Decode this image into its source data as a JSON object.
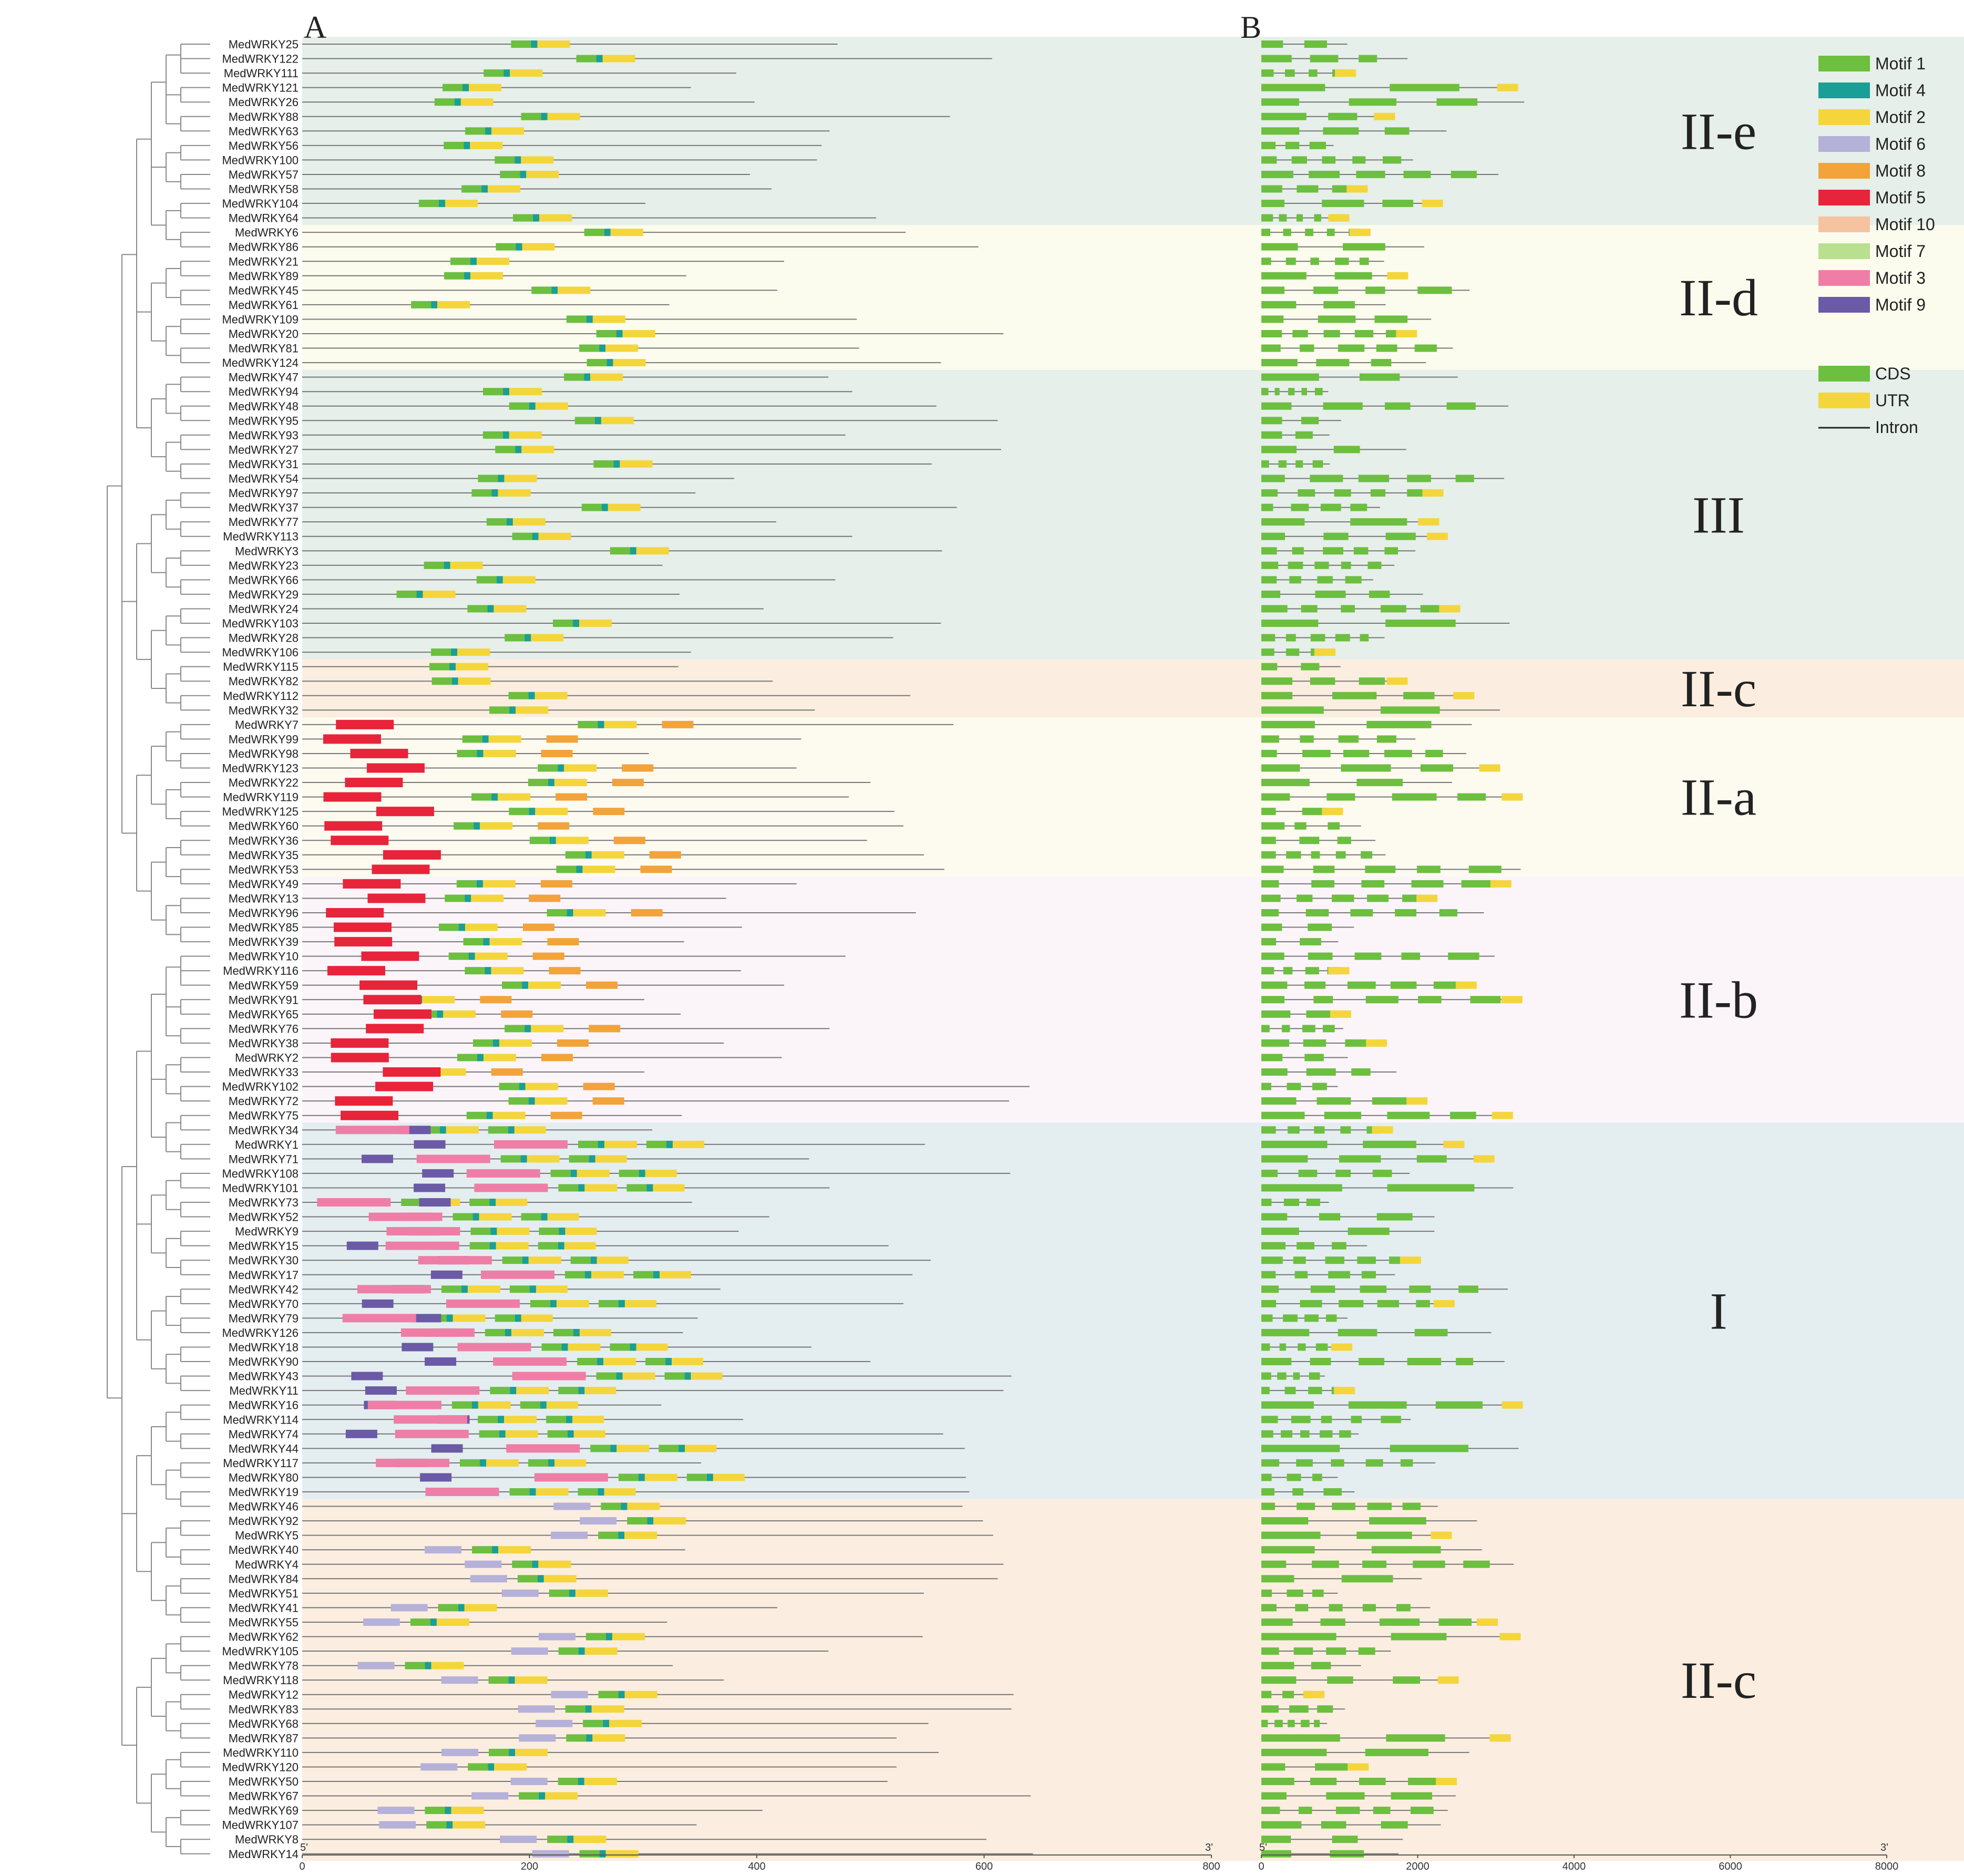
{
  "panels": [
    "A",
    "B"
  ],
  "colors": {
    "motif1": "#6cbf3f",
    "motif4": "#1a9e96",
    "motif2": "#f4d63c",
    "motif6": "#b6b1d8",
    "motif8": "#f2a33a",
    "motif5": "#e8243a",
    "motif10": "#f6c3a1",
    "motif7": "#b8e08e",
    "motif3": "#ef7ea6",
    "motif9": "#6b5aa6",
    "cds": "#6cbf3f",
    "utr": "#f4d63c",
    "intron": "#777777",
    "tree": "#888888"
  },
  "legend": {
    "motifs": [
      {
        "label": "Motif 1",
        "key": "motif1"
      },
      {
        "label": "Motif 4",
        "key": "motif4"
      },
      {
        "label": "Motif 2",
        "key": "motif2"
      },
      {
        "label": "Motif 6",
        "key": "motif6"
      },
      {
        "label": "Motif 8",
        "key": "motif8"
      },
      {
        "label": "Motif 5",
        "key": "motif5"
      },
      {
        "label": "Motif 10",
        "key": "motif10"
      },
      {
        "label": "Motif 7",
        "key": "motif7"
      },
      {
        "label": "Motif 3",
        "key": "motif3"
      },
      {
        "label": "Motif 9",
        "key": "motif9"
      }
    ],
    "structure": [
      {
        "label": "CDS",
        "key": "cds"
      },
      {
        "label": "UTR",
        "key": "utr"
      },
      {
        "label": "Intron",
        "key": "intron"
      }
    ]
  },
  "axisA": {
    "start": "5'",
    "end": "3'",
    "ticks": [
      "0",
      "200",
      "400",
      "600",
      "800"
    ],
    "max": 800
  },
  "axisB": {
    "start": "5'",
    "end": "3'",
    "ticks": [
      "0",
      "2000",
      "4000",
      "6000",
      "8000"
    ],
    "max": 8000
  },
  "groups": [
    {
      "label": "II-e",
      "color": "#e6efe9",
      "genes": [
        "MedWRKY25",
        "MedWRKY122",
        "MedWRKY111",
        "MedWRKY121",
        "MedWRKY26",
        "MedWRKY88",
        "MedWRKY63",
        "MedWRKY56",
        "MedWRKY100",
        "MedWRKY57",
        "MedWRKY58",
        "MedWRKY104",
        "MedWRKY64"
      ]
    },
    {
      "label": "II-d",
      "color": "#fcfcee",
      "genes": [
        "MedWRKY6",
        "MedWRKY86",
        "MedWRKY21",
        "MedWRKY89",
        "MedWRKY45",
        "MedWRKY61",
        "MedWRKY109",
        "MedWRKY20",
        "MedWRKY81",
        "MedWRKY124"
      ]
    },
    {
      "label": "III",
      "color": "#e6efe9",
      "genes": [
        "MedWRKY47",
        "MedWRKY94",
        "MedWRKY48",
        "MedWRKY95",
        "MedWRKY93",
        "MedWRKY27",
        "MedWRKY31",
        "MedWRKY54",
        "MedWRKY97",
        "MedWRKY37",
        "MedWRKY77",
        "MedWRKY113",
        "MedWRKY3",
        "MedWRKY23",
        "MedWRKY66",
        "MedWRKY29",
        "MedWRKY24",
        "MedWRKY103",
        "MedWRKY28",
        "MedWRKY106"
      ]
    },
    {
      "label": "II-c",
      "color": "#fbeee0",
      "genes": [
        "MedWRKY115",
        "MedWRKY82",
        "MedWRKY112",
        "MedWRKY32"
      ]
    },
    {
      "label": "II-a",
      "color": "#fdfaf0",
      "genes": [
        "MedWRKY7",
        "MedWRKY99",
        "MedWRKY98",
        "MedWRKY123",
        "MedWRKY22",
        "MedWRKY119",
        "MedWRKY125",
        "MedWRKY60",
        "MedWRKY36",
        "MedWRKY35",
        "MedWRKY53"
      ]
    },
    {
      "label": "II-b",
      "color": "#fbf5fa",
      "genes": [
        "MedWRKY49",
        "MedWRKY13",
        "MedWRKY96",
        "MedWRKY85",
        "MedWRKY39",
        "MedWRKY10",
        "MedWRKY116",
        "MedWRKY59",
        "MedWRKY91",
        "MedWRKY65",
        "MedWRKY76",
        "MedWRKY38",
        "MedWRKY2",
        "MedWRKY33",
        "MedWRKY102",
        "MedWRKY72",
        "MedWRKY75"
      ]
    },
    {
      "label": "I",
      "color": "#e4eef1",
      "genes": [
        "MedWRKY34",
        "MedWRKY1",
        "MedWRKY71",
        "MedWRKY108",
        "MedWRKY101",
        "MedWRKY73",
        "MedWRKY52",
        "MedWRKY9",
        "MedWRKY15",
        "MedWRKY30",
        "MedWRKY17",
        "MedWRKY42",
        "MedWRKY70",
        "MedWRKY79",
        "MedWRKY126",
        "MedWRKY18",
        "MedWRKY90",
        "MedWRKY43",
        "MedWRKY11",
        "MedWRKY16",
        "MedWRKY114",
        "MedWRKY74",
        "MedWRKY44",
        "MedWRKY117",
        "MedWRKY80",
        "MedWRKY19"
      ]
    },
    {
      "label": "II-c",
      "color": "#fbeee0",
      "genes": [
        "MedWRKY46",
        "MedWRKY92",
        "MedWRKY5",
        "MedWRKY40",
        "MedWRKY4",
        "MedWRKY84",
        "MedWRKY51",
        "MedWRKY41",
        "MedWRKY55",
        "MedWRKY62",
        "MedWRKY105",
        "MedWRKY78",
        "MedWRKY118",
        "MedWRKY12",
        "MedWRKY83",
        "MedWRKY68",
        "MedWRKY87",
        "MedWRKY110",
        "MedWRKY120",
        "MedWRKY50",
        "MedWRKY67",
        "MedWRKY69",
        "MedWRKY107",
        "MedWRKY8",
        "MedWRKY14"
      ]
    }
  ]
}
